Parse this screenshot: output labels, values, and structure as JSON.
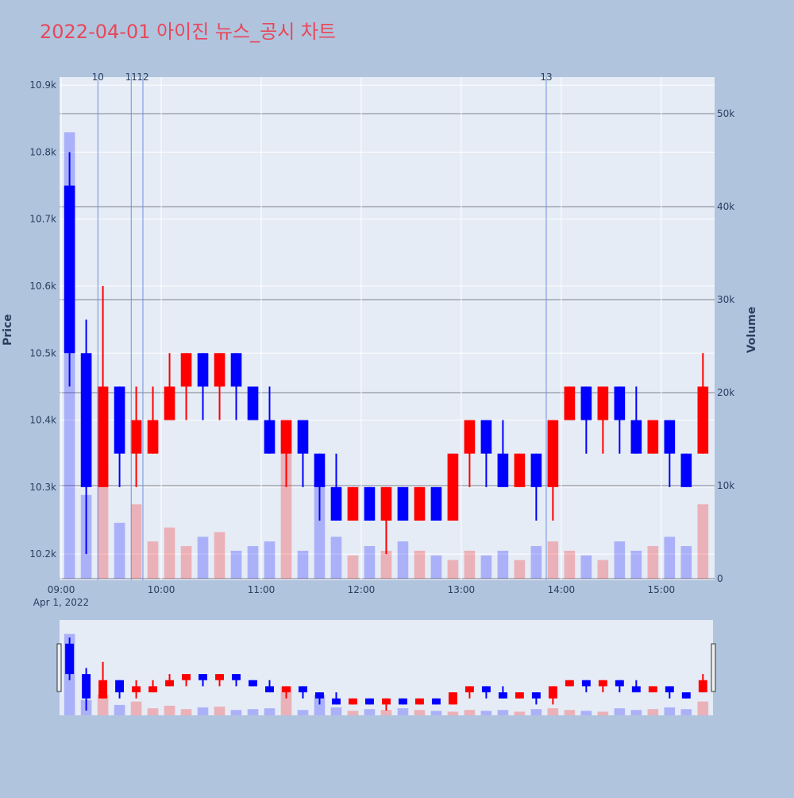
{
  "chart_data": {
    "type": "candlestick",
    "title": "2022-04-01 아이진 뉴스_공시 차트",
    "y_label": "Price",
    "y2_label": "Volume",
    "x_date_label": "Apr 1, 2022",
    "increasing_color": "#ff0000",
    "decreasing_color": "#0000ff",
    "x": [
      "09:00",
      "09:10",
      "09:20",
      "09:30",
      "09:40",
      "09:50",
      "10:00",
      "10:10",
      "10:20",
      "10:30",
      "10:40",
      "10:50",
      "11:00",
      "11:10",
      "11:20",
      "11:30",
      "11:40",
      "11:50",
      "12:00",
      "12:10",
      "12:20",
      "12:30",
      "12:40",
      "12:50",
      "13:00",
      "13:10",
      "13:20",
      "13:30",
      "13:40",
      "13:50",
      "14:00",
      "14:10",
      "14:20",
      "14:30",
      "14:40",
      "14:50",
      "15:00",
      "15:10",
      "15:20"
    ],
    "open": [
      10750,
      10500,
      10300,
      10450,
      10350,
      10350,
      10400,
      10450,
      10500,
      10450,
      10500,
      10450,
      10400,
      10350,
      10400,
      10350,
      10300,
      10250,
      10300,
      10250,
      10300,
      10250,
      10300,
      10250,
      10350,
      10400,
      10350,
      10300,
      10350,
      10300,
      10400,
      10450,
      10400,
      10450,
      10400,
      10350,
      10400,
      10350,
      10350
    ],
    "high": [
      10800,
      10550,
      10600,
      10450,
      10450,
      10450,
      10500,
      10500,
      10500,
      10500,
      10500,
      10450,
      10450,
      10400,
      10400,
      10350,
      10350,
      10300,
      10300,
      10300,
      10300,
      10300,
      10300,
      10350,
      10400,
      10400,
      10400,
      10350,
      10350,
      10400,
      10450,
      10450,
      10450,
      10450,
      10450,
      10400,
      10400,
      10350,
      10500
    ],
    "low": [
      10450,
      10200,
      10300,
      10300,
      10300,
      10350,
      10400,
      10400,
      10400,
      10400,
      10400,
      10400,
      10350,
      10300,
      10300,
      10250,
      10250,
      10250,
      10250,
      10200,
      10250,
      10250,
      10250,
      10250,
      10300,
      10300,
      10300,
      10300,
      10250,
      10250,
      10400,
      10350,
      10350,
      10350,
      10350,
      10350,
      10300,
      10300,
      10350
    ],
    "close": [
      10500,
      10300,
      10450,
      10350,
      10400,
      10400,
      10450,
      10500,
      10450,
      10500,
      10450,
      10400,
      10350,
      10400,
      10350,
      10300,
      10250,
      10300,
      10250,
      10300,
      10250,
      10300,
      10250,
      10350,
      10400,
      10350,
      10300,
      10350,
      10300,
      10400,
      10450,
      10400,
      10450,
      10400,
      10350,
      10400,
      10350,
      10300,
      10450
    ],
    "volume": [
      48000,
      9000,
      12000,
      6000,
      8000,
      4000,
      5500,
      3500,
      4500,
      5000,
      3000,
      3500,
      4000,
      17000,
      3000,
      12000,
      4500,
      2500,
      3500,
      3000,
      4000,
      3000,
      2500,
      2000,
      3000,
      2500,
      3000,
      2000,
      3500,
      4000,
      3000,
      2500,
      2000,
      4000,
      3000,
      3500,
      4500,
      3500,
      8000
    ],
    "annotations": [
      {
        "x": "09:22",
        "text": "10"
      },
      {
        "x": "09:42",
        "text": "11"
      },
      {
        "x": "09:49",
        "text": "12"
      },
      {
        "x": "13:51",
        "text": "13"
      }
    ],
    "xlim": [
      "08:59",
      "15:32"
    ],
    "xticks": [
      "09:00",
      "10:00",
      "11:00",
      "12:00",
      "13:00",
      "14:00",
      "15:00"
    ],
    "ylim": [
      10161,
      10912
    ],
    "yticks": [
      {
        "value": 10200,
        "label": "10.2k"
      },
      {
        "value": 10300,
        "label": "10.3k"
      },
      {
        "value": 10400,
        "label": "10.4k"
      },
      {
        "value": 10500,
        "label": "10.5k"
      },
      {
        "value": 10600,
        "label": "10.6k"
      },
      {
        "value": 10700,
        "label": "10.7k"
      },
      {
        "value": 10800,
        "label": "10.8k"
      },
      {
        "value": 10900,
        "label": "10.9k"
      }
    ],
    "y2lim": [
      -171,
      53932
    ],
    "y2ticks": [
      0,
      {
        "value": 10000,
        "label": "10k"
      },
      {
        "value": 20000,
        "label": "20k"
      },
      {
        "value": 30000,
        "label": "30k"
      },
      {
        "value": 40000,
        "label": "40k"
      },
      {
        "value": 50000,
        "label": "50k"
      }
    ],
    "grid": true,
    "rangeslider": true
  }
}
